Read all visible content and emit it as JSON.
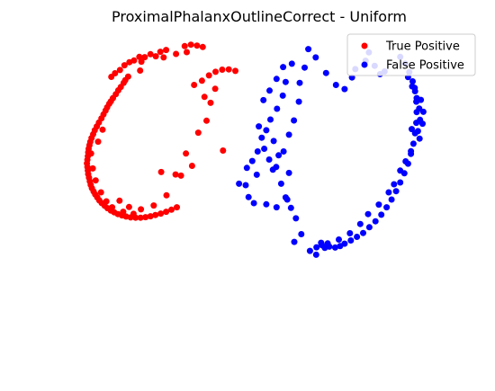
{
  "chart_data": {
    "type": "scatter",
    "title": "ProximalPhalanxOutlineCorrect - Uniform",
    "xlabel": "",
    "ylabel": "",
    "axes_visible": false,
    "grid": false,
    "legend_position": "top-right",
    "xlim": [
      0,
      100
    ],
    "ylim": [
      0,
      100
    ],
    "series": [
      {
        "name": "True Positive",
        "color": "#ff0000",
        "points": [
          [
            31.7,
            99.0
          ],
          [
            33.2,
            99.5
          ],
          [
            34.7,
            99.2
          ],
          [
            36.1,
            98.7
          ],
          [
            32.2,
            97.0
          ],
          [
            29.6,
            96.4
          ],
          [
            27.2,
            97.7
          ],
          [
            25.8,
            97.1
          ],
          [
            24.7,
            95.6
          ],
          [
            23.4,
            96.3
          ],
          [
            22.0,
            95.3
          ],
          [
            20.7,
            95.4
          ],
          [
            19.4,
            94.2
          ],
          [
            18.3,
            93.6
          ],
          [
            17.1,
            92.6
          ],
          [
            16.0,
            91.0
          ],
          [
            14.8,
            89.9
          ],
          [
            13.9,
            88.7
          ],
          [
            26.6,
            95.2
          ],
          [
            21.2,
            93.8
          ],
          [
            20.9,
            90.8
          ],
          [
            18.0,
            88.8
          ],
          [
            17.3,
            87.6
          ],
          [
            16.9,
            86.7
          ],
          [
            16.2,
            85.3
          ],
          [
            15.6,
            84.2
          ],
          [
            15.0,
            82.9
          ],
          [
            14.3,
            81.6
          ],
          [
            13.8,
            80.5
          ],
          [
            13.4,
            79.7
          ],
          [
            12.9,
            78.5
          ],
          [
            12.5,
            77.4
          ],
          [
            12.0,
            76.1
          ],
          [
            11.5,
            74.8
          ],
          [
            10.9,
            73.4
          ],
          [
            10.4,
            72.1
          ],
          [
            9.9,
            70.8
          ],
          [
            9.5,
            69.5
          ],
          [
            9.1,
            68.2
          ],
          [
            8.8,
            66.9
          ],
          [
            8.6,
            65.8
          ],
          [
            8.4,
            64.6
          ],
          [
            8.3,
            63.4
          ],
          [
            8.2,
            62.1
          ],
          [
            8.1,
            60.9
          ],
          [
            8.0,
            59.7
          ],
          [
            8.1,
            58.5
          ],
          [
            8.2,
            57.3
          ],
          [
            8.3,
            56.1
          ],
          [
            8.5,
            54.9
          ],
          [
            8.7,
            53.7
          ],
          [
            8.9,
            52.5
          ],
          [
            9.2,
            51.4
          ],
          [
            9.6,
            50.3
          ],
          [
            10.0,
            49.3
          ],
          [
            10.5,
            48.3
          ],
          [
            11.0,
            47.3
          ],
          [
            11.6,
            46.4
          ],
          [
            12.3,
            45.5
          ],
          [
            13.0,
            44.7
          ],
          [
            13.8,
            43.9
          ],
          [
            14.6,
            43.3
          ],
          [
            15.5,
            42.7
          ],
          [
            16.5,
            42.3
          ],
          [
            17.5,
            41.9
          ],
          [
            18.6,
            41.6
          ],
          [
            19.8,
            41.5
          ],
          [
            21.0,
            41.5
          ],
          [
            22.2,
            41.7
          ],
          [
            23.4,
            42.0
          ],
          [
            24.6,
            42.4
          ],
          [
            25.9,
            42.9
          ],
          [
            27.2,
            43.5
          ],
          [
            28.5,
            44.2
          ],
          [
            29.8,
            45.0
          ],
          [
            9.0,
            63.0
          ],
          [
            9.4,
            58.0
          ],
          [
            10.1,
            54.0
          ],
          [
            11.4,
            50.0
          ],
          [
            12.7,
            47.0
          ],
          [
            14.1,
            45.0
          ],
          [
            16.8,
            43.5
          ],
          [
            19.3,
            42.8
          ],
          [
            10.7,
            67.0
          ],
          [
            11.8,
            71.0
          ],
          [
            35.9,
            87.4
          ],
          [
            37.6,
            89.2
          ],
          [
            39.2,
            90.4
          ],
          [
            40.8,
            91.1
          ],
          [
            42.4,
            91.2
          ],
          [
            44.0,
            90.7
          ],
          [
            37.0,
            74.0
          ],
          [
            35.0,
            70.0
          ],
          [
            32.0,
            63.0
          ],
          [
            29.5,
            56.0
          ],
          [
            27.3,
            49.0
          ],
          [
            24.2,
            45.6
          ],
          [
            21.1,
            44.3
          ],
          [
            18.2,
            45.1
          ],
          [
            15.9,
            47.2
          ],
          [
            26.0,
            56.8
          ],
          [
            30.8,
            55.6
          ],
          [
            33.5,
            58.9
          ],
          [
            41.0,
            64.0
          ],
          [
            36.5,
            82.0
          ],
          [
            39.1,
            84.7
          ],
          [
            34.0,
            86.0
          ],
          [
            38.0,
            80.0
          ]
        ]
      },
      {
        "name": "False Positive",
        "color": "#0000ff",
        "points": [
          [
            63.6,
            29.1
          ],
          [
            63.7,
            31.6
          ],
          [
            65.0,
            32.3
          ],
          [
            65.7,
            31.4
          ],
          [
            66.8,
            31.8
          ],
          [
            68.2,
            31.5
          ],
          [
            69.4,
            32.0
          ],
          [
            70.5,
            32.8
          ],
          [
            72.0,
            33.9
          ],
          [
            73.5,
            35.1
          ],
          [
            75.0,
            36.4
          ],
          [
            76.5,
            38.3
          ],
          [
            78.0,
            40.3
          ],
          [
            79.4,
            42.5
          ],
          [
            80.7,
            45.0
          ],
          [
            81.9,
            47.6
          ],
          [
            83.0,
            50.4
          ],
          [
            84.0,
            53.3
          ],
          [
            85.0,
            56.4
          ],
          [
            85.9,
            59.6
          ],
          [
            86.6,
            62.9
          ],
          [
            87.2,
            66.3
          ],
          [
            87.6,
            69.8
          ],
          [
            87.9,
            73.3
          ],
          [
            88.0,
            76.9
          ],
          [
            87.9,
            80.4
          ],
          [
            87.6,
            83.9
          ],
          [
            87.0,
            87.2
          ],
          [
            86.2,
            90.3
          ],
          [
            85.2,
            93.1
          ],
          [
            84.0,
            95.4
          ],
          [
            86.8,
            71.2
          ],
          [
            88.3,
            70.5
          ],
          [
            88.8,
            74.3
          ],
          [
            88.6,
            78.1
          ],
          [
            88.0,
            81.6
          ],
          [
            86.9,
            85.5
          ],
          [
            85.9,
            88.6
          ],
          [
            87.5,
            85.0
          ],
          [
            89.0,
            81.0
          ],
          [
            89.6,
            77.0
          ],
          [
            89.4,
            73.0
          ],
          [
            88.7,
            68.0
          ],
          [
            86.6,
            63.8
          ],
          [
            85.3,
            60.4
          ],
          [
            84.0,
            57.3
          ],
          [
            82.5,
            52.7
          ],
          [
            81.2,
            50.0
          ],
          [
            78.8,
            45.9
          ],
          [
            76.2,
            42.7
          ],
          [
            74.3,
            39.4
          ],
          [
            71.8,
            36.3
          ],
          [
            69.1,
            34.2
          ],
          [
            66.4,
            32.9
          ],
          [
            64.8,
            33.1
          ],
          [
            60.0,
            36.0
          ],
          [
            58.7,
            41.3
          ],
          [
            57.5,
            44.8
          ],
          [
            56.2,
            48.3
          ],
          [
            55.1,
            52.9
          ],
          [
            53.1,
            57.6
          ],
          [
            52.2,
            61.0
          ],
          [
            51.0,
            64.6
          ],
          [
            50.4,
            68.3
          ],
          [
            49.7,
            72.1
          ],
          [
            52.5,
            74.4
          ],
          [
            54.1,
            78.0
          ],
          [
            55.5,
            82.4
          ],
          [
            56.2,
            87.0
          ],
          [
            57.7,
            93.1
          ],
          [
            61.7,
            98.0
          ],
          [
            63.5,
            95.2
          ],
          [
            60.8,
            91.8
          ],
          [
            59.6,
            86.7
          ],
          [
            59.4,
            80.4
          ],
          [
            58.2,
            74.1
          ],
          [
            57.0,
            69.3
          ],
          [
            55.7,
            63.7
          ],
          [
            53.9,
            58.5
          ],
          [
            49.2,
            55.9
          ],
          [
            46.5,
            52.4
          ],
          [
            44.9,
            52.9
          ],
          [
            47.2,
            48.4
          ],
          [
            48.5,
            46.4
          ],
          [
            51.5,
            46.0
          ],
          [
            54.0,
            45.0
          ],
          [
            56.6,
            47.6
          ],
          [
            57.0,
            56.5
          ],
          [
            54.5,
            62.4
          ],
          [
            53.3,
            67.2
          ],
          [
            51.5,
            70.8
          ],
          [
            49.4,
            63.7
          ],
          [
            48.1,
            60.5
          ],
          [
            46.8,
            58.2
          ],
          [
            66.0,
            90.0
          ],
          [
            68.4,
            86.0
          ],
          [
            70.5,
            84.6
          ],
          [
            72.3,
            88.5
          ],
          [
            73.1,
            91.3
          ],
          [
            75.6,
            94.1
          ],
          [
            76.4,
            96.9
          ],
          [
            77.8,
            92.4
          ],
          [
            79.1,
            89.6
          ],
          [
            80.2,
            90.5
          ],
          [
            55.6,
            92.0
          ],
          [
            54.0,
            88.0
          ],
          [
            52.3,
            84.1
          ],
          [
            50.8,
            80.9
          ],
          [
            58.3,
            33.4
          ],
          [
            62.1,
            30.4
          ]
        ]
      }
    ]
  }
}
